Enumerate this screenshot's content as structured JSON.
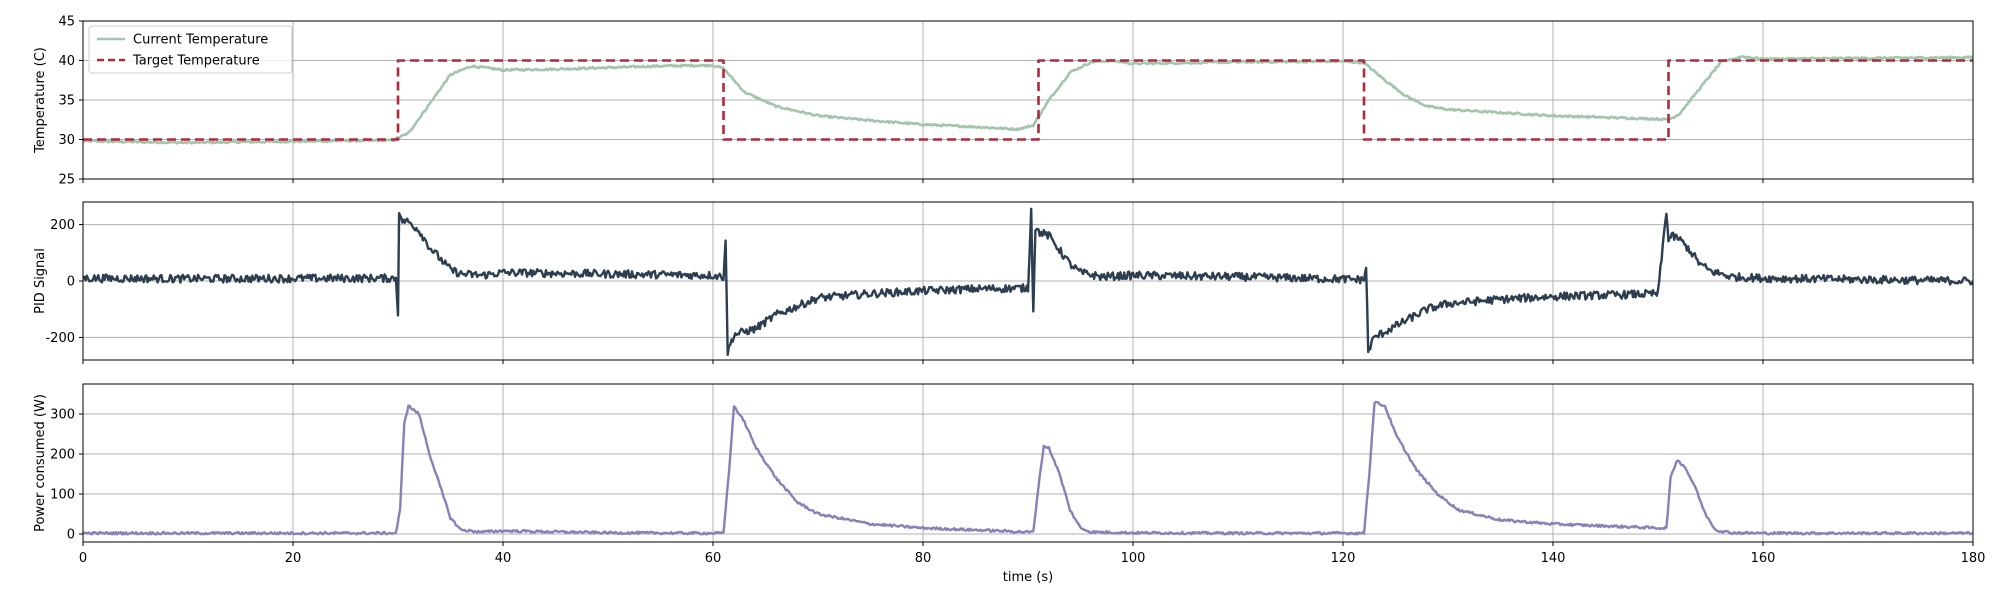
{
  "chart_data": [
    {
      "type": "line",
      "panel": "temperature",
      "ylabel": "Temperature (C)",
      "xlim": [
        0,
        180
      ],
      "ylim": [
        25,
        45
      ],
      "yticks": [
        25,
        30,
        35,
        40,
        45
      ],
      "grid": true,
      "legend": "top-left",
      "series": [
        {
          "name": "Current Temperature",
          "color": "#a3c4ad",
          "style": "solid",
          "x": [
            0,
            10,
            29.5,
            31,
            33,
            35,
            37,
            40,
            45,
            50,
            55,
            60,
            61,
            63,
            66,
            70,
            75,
            80,
            85,
            89,
            90.5,
            92,
            94,
            96,
            98,
            100,
            110,
            120,
            122,
            124,
            126,
            128,
            130,
            135,
            140,
            145,
            150,
            151,
            152,
            154,
            156,
            158,
            160,
            170,
            180
          ],
          "y": [
            29.8,
            29.6,
            29.9,
            30.8,
            34.5,
            38.2,
            39.3,
            38.8,
            38.9,
            39.1,
            39.3,
            39.4,
            39.0,
            36.0,
            34.2,
            33.0,
            32.4,
            31.9,
            31.6,
            31.3,
            31.8,
            35.0,
            38.5,
            39.8,
            40.0,
            39.6,
            39.8,
            39.9,
            39.7,
            37.5,
            35.5,
            34.2,
            33.8,
            33.4,
            33.0,
            32.8,
            32.6,
            32.5,
            33.2,
            36.5,
            39.8,
            40.5,
            40.2,
            40.3,
            40.4
          ]
        },
        {
          "name": "Target Temperature",
          "color": "#b02a3a",
          "style": "dashed",
          "x": [
            0,
            30,
            30,
            61,
            61,
            91,
            91,
            122,
            122,
            151,
            151,
            180
          ],
          "y": [
            30,
            30,
            40,
            40,
            30,
            30,
            40,
            40,
            30,
            30,
            40,
            40
          ]
        }
      ]
    },
    {
      "type": "line",
      "panel": "pid",
      "ylabel": "PID Signal",
      "xlim": [
        0,
        180
      ],
      "ylim": [
        -280,
        280
      ],
      "yticks": [
        -200,
        0,
        200
      ],
      "grid": true,
      "series": [
        {
          "color": "#2c3e50",
          "style": "solid",
          "x": [
            0,
            10,
            29.8,
            30.0,
            30.1,
            30.3,
            31,
            32,
            33,
            34,
            35,
            36,
            38,
            40,
            50,
            60,
            61.0,
            61.2,
            61.4,
            62,
            64,
            66,
            68,
            70,
            75,
            80,
            85,
            90,
            90.3,
            90.5,
            90.7,
            91,
            92,
            93,
            94,
            95,
            97,
            100,
            110,
            122,
            122.2,
            122.4,
            122.6,
            123,
            124,
            126,
            128,
            130,
            135,
            140,
            145,
            150,
            150.8,
            151.0,
            151.2,
            152,
            153,
            154,
            155,
            157,
            160,
            170,
            180
          ],
          "y": [
            10,
            8,
            10,
            -110,
            250,
            215,
            210,
            180,
            120,
            80,
            40,
            25,
            20,
            30,
            25,
            20,
            15,
            150,
            -250,
            -190,
            -170,
            -120,
            -90,
            -60,
            -45,
            -35,
            -28,
            -25,
            250,
            -100,
            185,
            175,
            160,
            110,
            60,
            30,
            15,
            20,
            15,
            5,
            50,
            -250,
            -230,
            -200,
            -180,
            -140,
            -100,
            -80,
            -65,
            -55,
            -50,
            -45,
            250,
            140,
            160,
            150,
            110,
            60,
            35,
            15,
            10,
            5,
            0
          ]
        }
      ]
    },
    {
      "type": "line",
      "panel": "power",
      "ylabel": "Power consumed (W)",
      "xlabel": "time (s)",
      "xlim": [
        0,
        180
      ],
      "ylim": [
        -20,
        375
      ],
      "yticks": [
        0,
        100,
        200,
        300
      ],
      "xticks": [
        0,
        20,
        40,
        60,
        80,
        100,
        120,
        140,
        160,
        180
      ],
      "grid": true,
      "series": [
        {
          "color": "#8b7fb8",
          "style": "solid",
          "x": [
            0,
            10,
            29.8,
            30.2,
            30.6,
            31,
            32,
            33,
            34,
            35,
            36,
            38,
            40,
            50,
            60,
            61.0,
            61.5,
            62,
            63,
            64,
            66,
            68,
            70,
            75,
            80,
            85,
            90,
            90.5,
            91,
            91.5,
            92,
            93,
            94,
            95,
            96,
            100,
            110,
            122,
            122.5,
            123,
            124,
            125,
            127,
            129,
            131,
            135,
            140,
            145,
            150,
            150.8,
            151.2,
            151.8,
            152.5,
            153.5,
            154.5,
            155.5,
            157,
            160,
            170,
            180
          ],
          "y": [
            2,
            2,
            2,
            60,
            280,
            320,
            300,
            200,
            120,
            40,
            10,
            5,
            8,
            3,
            2,
            2,
            150,
            320,
            280,
            220,
            140,
            80,
            50,
            25,
            15,
            10,
            5,
            5,
            120,
            220,
            215,
            150,
            60,
            15,
            5,
            3,
            2,
            2,
            150,
            330,
            320,
            250,
            160,
            100,
            60,
            35,
            25,
            20,
            15,
            15,
            140,
            185,
            170,
            120,
            50,
            10,
            3,
            2,
            2,
            2
          ]
        }
      ]
    }
  ]
}
